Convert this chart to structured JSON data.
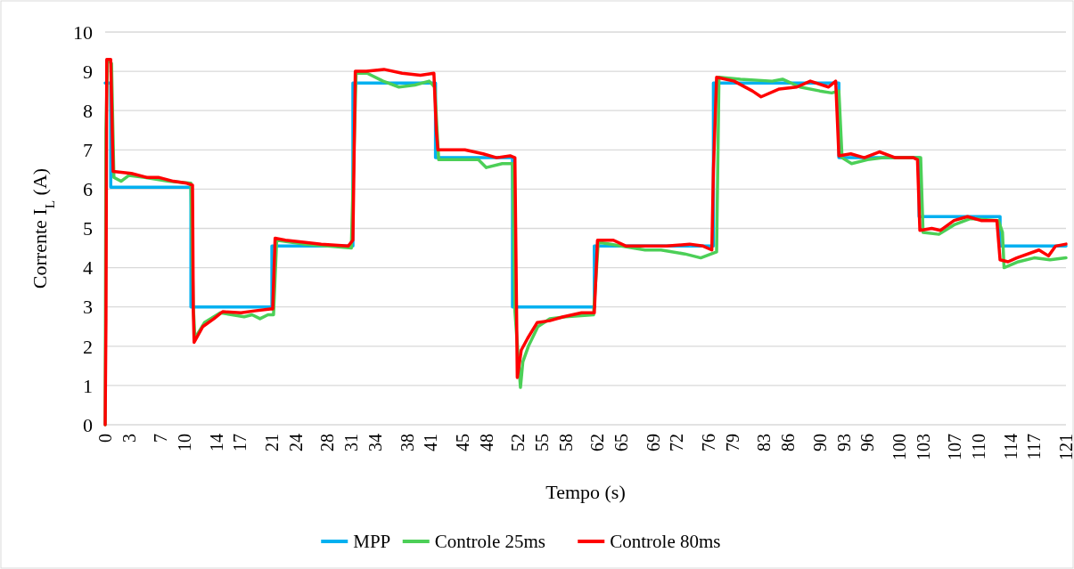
{
  "chart_data": {
    "type": "line",
    "xlabel": "Tempo (s)",
    "ylabel": "Corrente I$_{L}$ (A)",
    "xlim": [
      0,
      121
    ],
    "ylim": [
      0,
      10
    ],
    "yticks": [
      0,
      1,
      2,
      3,
      4,
      5,
      6,
      7,
      8,
      9,
      10
    ],
    "xticks": [
      0,
      3,
      7,
      10,
      14,
      17,
      21,
      24,
      28,
      31,
      34,
      38,
      41,
      45,
      48,
      52,
      55,
      58,
      62,
      65,
      69,
      72,
      76,
      79,
      83,
      86,
      90,
      93,
      96,
      100,
      103,
      107,
      110,
      114,
      117,
      121
    ],
    "grid": "y",
    "legend": "bottom",
    "marker": "none",
    "line_style": "solid",
    "series": [
      {
        "name": "MPP",
        "type": "step",
        "color": "#00b0f0",
        "x": [
          0,
          0.7,
          10.8,
          21,
          31.2,
          41.6,
          51.3,
          61.6,
          76.6,
          92.4,
          102.5,
          112.7,
          121
        ],
        "values": [
          8.7,
          6.05,
          3.0,
          4.55,
          8.7,
          6.8,
          3.0,
          4.55,
          8.7,
          6.8,
          5.3,
          4.55,
          4.55
        ]
      },
      {
        "name": "Controle 25ms",
        "color": "#4ccf57",
        "x": [
          0,
          0.1,
          0.3,
          0.8,
          1.1,
          2,
          3,
          5,
          8,
          10.8,
          11.1,
          11.3,
          12.5,
          14.5,
          17.5,
          18.5,
          19.5,
          20.5,
          21.2,
          21.6,
          25,
          28,
          31,
          31.6,
          33,
          35,
          37,
          39,
          40.8,
          41.5,
          42,
          44,
          47,
          48,
          50,
          51.3,
          51.6,
          52.3,
          52.6,
          53.3,
          54.5,
          56,
          58,
          61.5,
          62.1,
          65,
          68,
          70,
          73,
          75,
          77,
          77.3,
          80,
          84,
          85.3,
          87.5,
          90,
          91.5,
          92.4,
          92.8,
          94,
          96,
          98,
          102.7,
          103,
          105,
          107,
          109,
          112.5,
          113,
          113.2,
          115,
          117,
          119,
          121
        ],
        "values": [
          0,
          7.5,
          9.3,
          9.2,
          6.3,
          6.2,
          6.35,
          6.3,
          6.2,
          6.15,
          3.0,
          2.2,
          2.6,
          2.85,
          2.75,
          2.8,
          2.7,
          2.8,
          2.8,
          4.7,
          4.6,
          4.55,
          4.5,
          8.95,
          8.95,
          8.75,
          8.6,
          8.65,
          8.75,
          8.6,
          6.75,
          6.75,
          6.75,
          6.55,
          6.65,
          6.65,
          2.9,
          0.95,
          1.6,
          2.0,
          2.5,
          2.7,
          2.75,
          2.8,
          4.65,
          4.55,
          4.45,
          4.45,
          4.35,
          4.25,
          4.4,
          8.85,
          8.8,
          8.75,
          8.8,
          8.6,
          8.5,
          8.45,
          8.5,
          6.8,
          6.65,
          6.75,
          6.8,
          6.8,
          4.9,
          4.85,
          5.1,
          5.25,
          5.2,
          4.9,
          4.0,
          4.15,
          4.25,
          4.2,
          4.25
        ]
      },
      {
        "name": "Controle 80ms",
        "color": "#ff0000",
        "x": [
          0,
          0.1,
          0.2,
          0.7,
          1.0,
          3.3,
          5.2,
          6.7,
          8.6,
          10.3,
          11,
          11.1,
          11.2,
          12.3,
          13.7,
          14.8,
          17.1,
          18.8,
          20.8,
          21.1,
          21.4,
          22.7,
          25,
          27.2,
          30.6,
          31.2,
          31.5,
          32.9,
          35.1,
          37.4,
          39.7,
          41.4,
          41.7,
          41.9,
          45.3,
          47.6,
          49.3,
          51,
          51.6,
          51.9,
          52.4,
          53.2,
          54.4,
          56,
          57.7,
          60,
          61.6,
          62,
          64,
          65.6,
          67.9,
          70.7,
          73.6,
          75.3,
          76.4,
          76.6,
          77,
          79.2,
          81.5,
          82.6,
          84.9,
          87.1,
          88.8,
          91.1,
          92,
          92.4,
          93.9,
          95.6,
          97.5,
          99.5,
          101.8,
          102.3,
          102.6,
          104.1,
          105.2,
          106.9,
          108.6,
          110.3,
          112.3,
          112.7,
          113.7,
          114.8,
          117.6,
          118.8,
          119.7,
          121
        ],
        "values": [
          0,
          2.7,
          9.3,
          9.3,
          6.45,
          6.4,
          6.3,
          6.3,
          6.2,
          6.15,
          6.1,
          2.9,
          2.1,
          2.5,
          2.7,
          2.88,
          2.85,
          2.9,
          2.95,
          2.95,
          4.75,
          4.7,
          4.65,
          4.6,
          4.55,
          4.7,
          9.0,
          9.0,
          9.05,
          8.95,
          8.9,
          8.95,
          7.5,
          7.0,
          7.0,
          6.9,
          6.8,
          6.85,
          6.8,
          1.2,
          1.9,
          2.2,
          2.6,
          2.65,
          2.75,
          2.85,
          2.85,
          4.7,
          4.7,
          4.55,
          4.55,
          4.55,
          4.6,
          4.55,
          4.45,
          6.5,
          8.85,
          8.75,
          8.5,
          8.35,
          8.55,
          8.6,
          8.75,
          8.6,
          8.75,
          6.85,
          6.9,
          6.8,
          6.95,
          6.8,
          6.8,
          6.75,
          4.95,
          5.0,
          4.95,
          5.2,
          5.3,
          5.2,
          5.2,
          4.2,
          4.15,
          4.25,
          4.45,
          4.3,
          4.55,
          4.6
        ]
      }
    ]
  }
}
